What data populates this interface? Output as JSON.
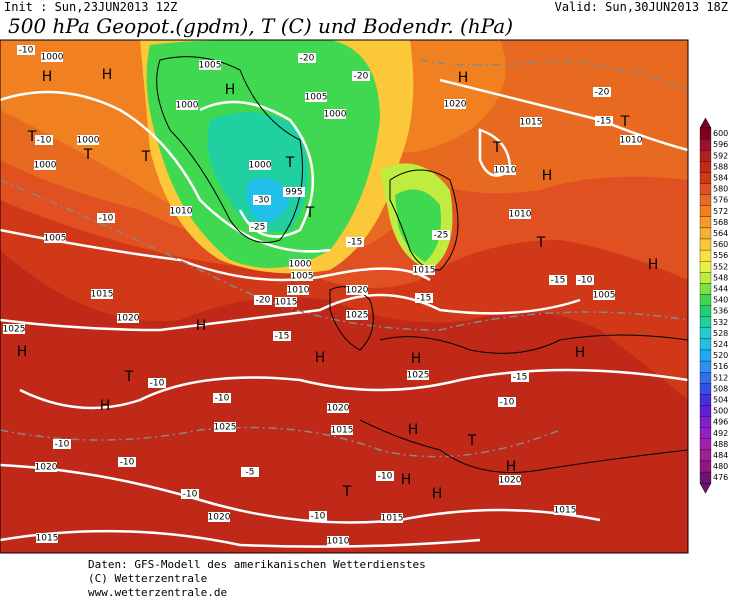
{
  "header": {
    "init": "Init : Sun,23JUN2013 12Z",
    "valid": "Valid: Sun,30JUN2013 18Z",
    "title": "500 hPa Geopot.(gpdm), T (C) und Bodendr. (hPa)"
  },
  "map": {
    "labels": [
      "H",
      "H",
      "H",
      "H",
      "H",
      "H",
      "H",
      "H",
      "H",
      "H",
      "H",
      "H",
      "H",
      "H",
      "H",
      "H",
      "T",
      "T",
      "T",
      "T",
      "T",
      "T",
      "T",
      "T",
      "T",
      "T",
      "T",
      "1000",
      "1005",
      "1000",
      "1000",
      "1000",
      "1010",
      "1005",
      "995",
      "1000",
      "1000",
      "1005",
      "1020",
      "1015",
      "1010",
      "1010",
      "1010",
      "1000",
      "1005",
      "1010",
      "1015",
      "1015",
      "1020",
      "1020",
      "1025",
      "1025",
      "1015",
      "1005",
      "1025",
      "1020",
      "1015",
      "1025",
      "1020",
      "1020",
      "1015",
      "1010",
      "1015",
      "1015",
      "1020",
      "-20",
      "-20",
      "-20",
      "-15",
      "-10",
      "-10",
      "-30",
      "-25",
      "-15",
      "-20",
      "-15",
      "-15",
      "-10",
      "-10",
      "-10",
      "-15",
      "-10",
      "-10",
      "-5",
      "-10",
      "-10",
      "-15",
      "-10",
      "-10",
      "-10",
      "-25"
    ]
  },
  "colorbar": {
    "labels": [
      600,
      596,
      592,
      588,
      584,
      580,
      576,
      572,
      568,
      564,
      560,
      556,
      552,
      548,
      544,
      540,
      536,
      532,
      528,
      524,
      520,
      516,
      512,
      508,
      504,
      500,
      496,
      492,
      488,
      484,
      480,
      476
    ],
    "colors": [
      "#800020",
      "#9a1030",
      "#b02020",
      "#c02818",
      "#d03818",
      "#e05020",
      "#e86a20",
      "#f08020",
      "#f59a28",
      "#f8b030",
      "#fac838",
      "#fae040",
      "#e8f040",
      "#c0ec40",
      "#7ee040",
      "#40d850",
      "#20d070",
      "#20d0a0",
      "#20d0d0",
      "#20c0e8",
      "#20a8f0",
      "#3090f0",
      "#3070f0",
      "#3050e8",
      "#4030e0",
      "#6020d8",
      "#8020d0",
      "#9020c0",
      "#a020b0",
      "#a02090",
      "#901880",
      "#701070"
    ]
  },
  "footer": {
    "line1": "Daten: GFS-Modell des amerikanischen Wetterdienstes",
    "line2": "(C) Wetterzentrale",
    "line3": "www.wetterzentrale.de"
  }
}
